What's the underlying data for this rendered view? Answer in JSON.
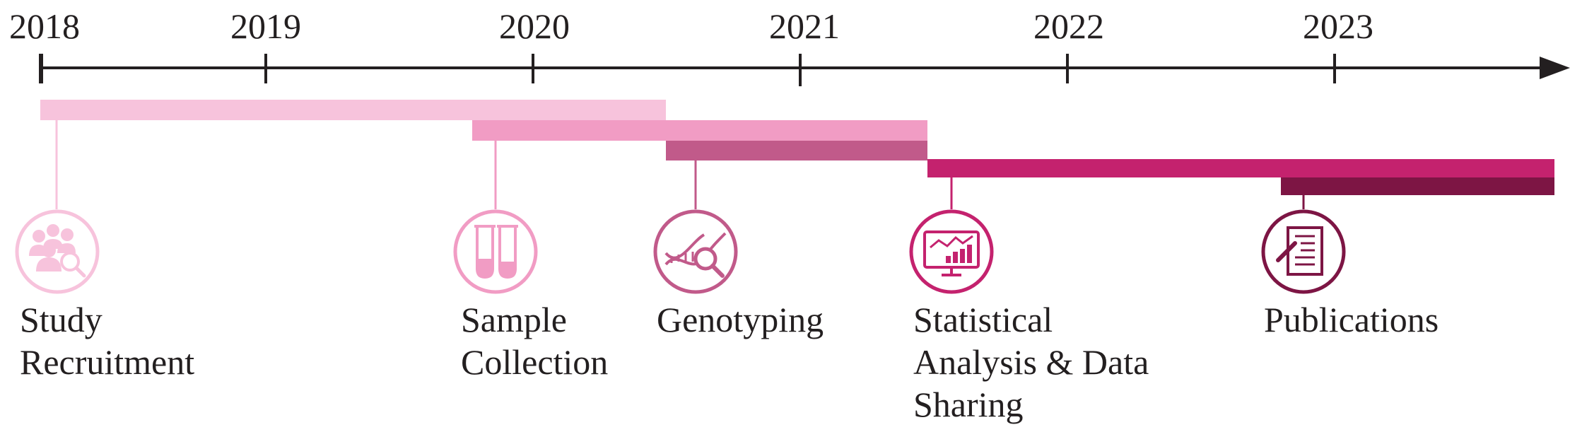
{
  "timeline": {
    "years": [
      "2018",
      "2019",
      "2020",
      "2021",
      "2022",
      "2023"
    ]
  },
  "phases": [
    {
      "key": "recruitment",
      "label_lines": [
        "Study",
        "Recruitment"
      ],
      "color": "#f7c3dc",
      "icon": "people-search-icon"
    },
    {
      "key": "collection",
      "label_lines": [
        "Sample",
        "Collection"
      ],
      "color": "#f19cc4",
      "icon": "test-tubes-icon"
    },
    {
      "key": "genotyping",
      "label_lines": [
        "Genotyping"
      ],
      "color": "#c15a8a",
      "icon": "dna-magnifier-icon"
    },
    {
      "key": "analysis",
      "label_lines": [
        "Statistical",
        "Analysis & Data",
        "Sharing"
      ],
      "color": "#c4226e",
      "icon": "monitor-chart-icon"
    },
    {
      "key": "publications",
      "label_lines": [
        "Publications"
      ],
      "color": "#7d1544",
      "icon": "document-pen-icon"
    }
  ],
  "colors": {
    "axis": "#231f20"
  }
}
